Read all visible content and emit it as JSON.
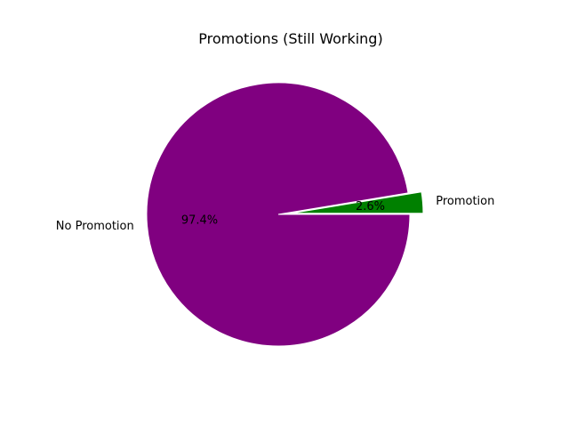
{
  "chart_data": {
    "type": "pie",
    "title": "Promotions (Still Working)",
    "slices": [
      {
        "label": "Promotion",
        "value": 2.6,
        "pct_label": "2.6%",
        "color": "#008000",
        "exploded": true
      },
      {
        "label": "No Promotion",
        "value": 97.4,
        "pct_label": "97.4%",
        "color": "#800080",
        "exploded": false
      }
    ],
    "start_angle_deg": 0,
    "direction": "counterclockwise",
    "edge_color": "#ffffff"
  }
}
